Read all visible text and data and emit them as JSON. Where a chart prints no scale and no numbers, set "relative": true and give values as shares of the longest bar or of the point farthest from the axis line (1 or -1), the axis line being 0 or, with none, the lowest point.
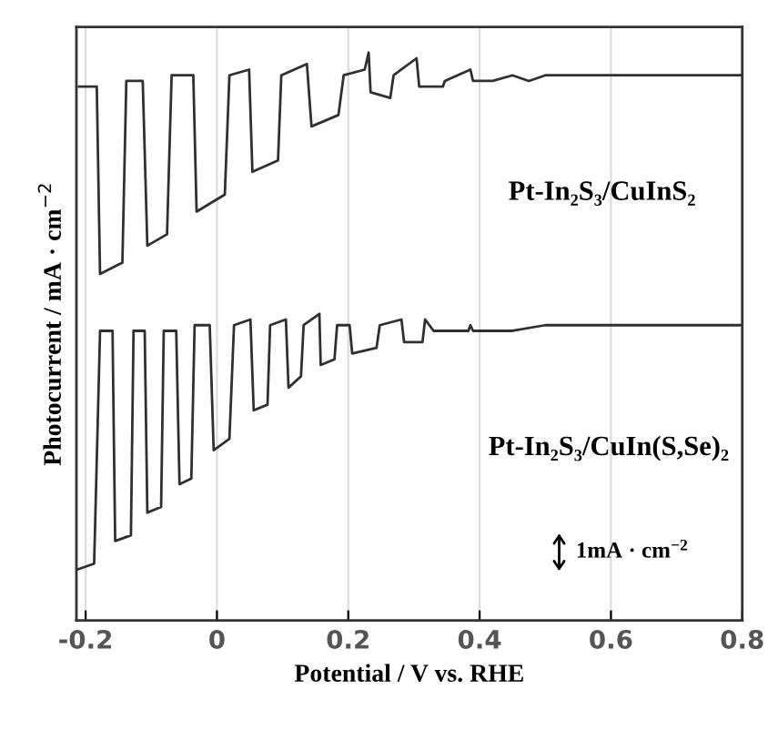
{
  "chart_data": {
    "type": "line",
    "relative": true,
    "xlabel": "Potential / V vs. RHE",
    "ylabel": "Photocurrent / mA · cm$^{−2}$",
    "xlim": [
      -0.214,
      0.8
    ],
    "xticks": [
      {
        "value": -0.2,
        "label": "-0.2"
      },
      0,
      0.2,
      0.4,
      0.6,
      0.8
    ],
    "grid": "x",
    "legend": false,
    "line_style": "solid",
    "marker": "none",
    "annotations": [
      "Pt-In₂S₃/CuInS₂",
      "Pt-In₂S₃/CuIn(S,Se)₂",
      "1mA · cm$^{−2}$"
    ],
    "series": [
      {
        "color": "#303030",
        "x": [
          -0.21,
          -0.183,
          -0.178,
          -0.144,
          -0.138,
          -0.113,
          -0.106,
          -0.076,
          -0.069,
          -0.036,
          -0.031,
          0.012,
          0.019,
          0.049,
          0.054,
          0.093,
          0.098,
          0.137,
          0.144,
          0.185,
          0.193,
          0.225,
          0.231,
          0.234,
          0.264,
          0.269,
          0.304,
          0.308,
          0.344,
          0.347,
          0.386,
          0.39,
          0.42,
          0.45,
          0.475,
          0.5,
          0.8
        ],
        "values": [
          0.94,
          0.94,
          0.61,
          0.63,
          0.95,
          0.95,
          0.66,
          0.68,
          0.96,
          0.96,
          0.72,
          0.75,
          0.96,
          0.97,
          0.79,
          0.81,
          0.96,
          0.98,
          0.87,
          0.89,
          0.96,
          0.97,
          1.0,
          0.93,
          0.92,
          0.96,
          0.99,
          0.94,
          0.94,
          0.95,
          0.97,
          0.95,
          0.95,
          0.96,
          0.95,
          0.96,
          0.96
        ]
      },
      {
        "color": "#303030",
        "x": [
          -0.212,
          -0.187,
          -0.178,
          -0.159,
          -0.155,
          -0.131,
          -0.127,
          -0.11,
          -0.106,
          -0.085,
          -0.081,
          -0.062,
          -0.057,
          -0.039,
          -0.034,
          -0.011,
          -0.005,
          0.019,
          0.026,
          0.051,
          0.056,
          0.077,
          0.081,
          0.105,
          0.109,
          0.128,
          0.132,
          0.156,
          0.158,
          0.179,
          0.183,
          0.202,
          0.206,
          0.243,
          0.248,
          0.281,
          0.285,
          0.313,
          0.317,
          0.33,
          0.383,
          0.386,
          0.39,
          0.45,
          0.5,
          0.8
        ],
        "values": [
          0.09,
          0.1,
          0.51,
          0.51,
          0.14,
          0.15,
          0.51,
          0.51,
          0.19,
          0.2,
          0.51,
          0.51,
          0.24,
          0.25,
          0.52,
          0.52,
          0.3,
          0.32,
          0.52,
          0.53,
          0.37,
          0.38,
          0.52,
          0.53,
          0.41,
          0.43,
          0.52,
          0.54,
          0.45,
          0.46,
          0.52,
          0.52,
          0.47,
          0.48,
          0.52,
          0.53,
          0.49,
          0.49,
          0.53,
          0.51,
          0.51,
          0.52,
          0.51,
          0.51,
          0.52,
          0.52
        ]
      }
    ]
  }
}
